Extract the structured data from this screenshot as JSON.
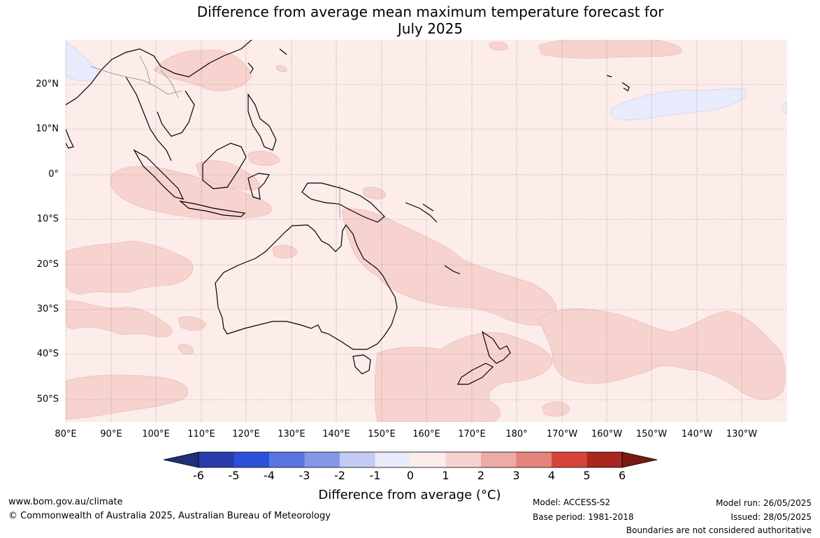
{
  "title_line1": "Difference from average mean maximum temperature forecast for",
  "title_line2": "July 2025",
  "lat_labels": [
    "20°N",
    "10°N",
    "0°",
    "10°S",
    "20°S",
    "30°S",
    "40°S",
    "50°S"
  ],
  "lon_labels": [
    "80°E",
    "90°E",
    "100°E",
    "110°E",
    "120°E",
    "130°E",
    "140°E",
    "150°E",
    "160°E",
    "170°E",
    "180°",
    "170°W",
    "160°W",
    "150°W",
    "140°W",
    "130°W"
  ],
  "colorbar": {
    "ticks": [
      "-6",
      "-5",
      "-4",
      "-3",
      "-2",
      "-1",
      "0",
      "1",
      "2",
      "3",
      "4",
      "5",
      "6"
    ],
    "colors": [
      "#1f2f7a",
      "#2a3ca8",
      "#2d50d8",
      "#5a75e0",
      "#8598e8",
      "#c3caf3",
      "#e8ebfb",
      "#fcecea",
      "#f7d3d0",
      "#eeaaa4",
      "#e5847c",
      "#d9443a",
      "#a8271f",
      "#7a1a12"
    ],
    "title": "Difference from average (°C)"
  },
  "footer": {
    "website": "www.bom.gov.au/climate",
    "copyright": "© Commonwealth of Australia 2025, Australian Bureau of Meteorology",
    "model": "Model: ACCESS-S2",
    "base_period": "Base period: 1981-2018",
    "model_run": "Model run: 26/05/2025",
    "issued": "Issued: 28/05/2025",
    "disclaimer": "Boundaries are not considered authoritative"
  },
  "map_colors": {
    "background": "#fcecea",
    "warm_anomaly": "#f7d3d0",
    "cool_anomaly": "#e8ebfb",
    "coast": "#000000",
    "border": "#888888"
  }
}
